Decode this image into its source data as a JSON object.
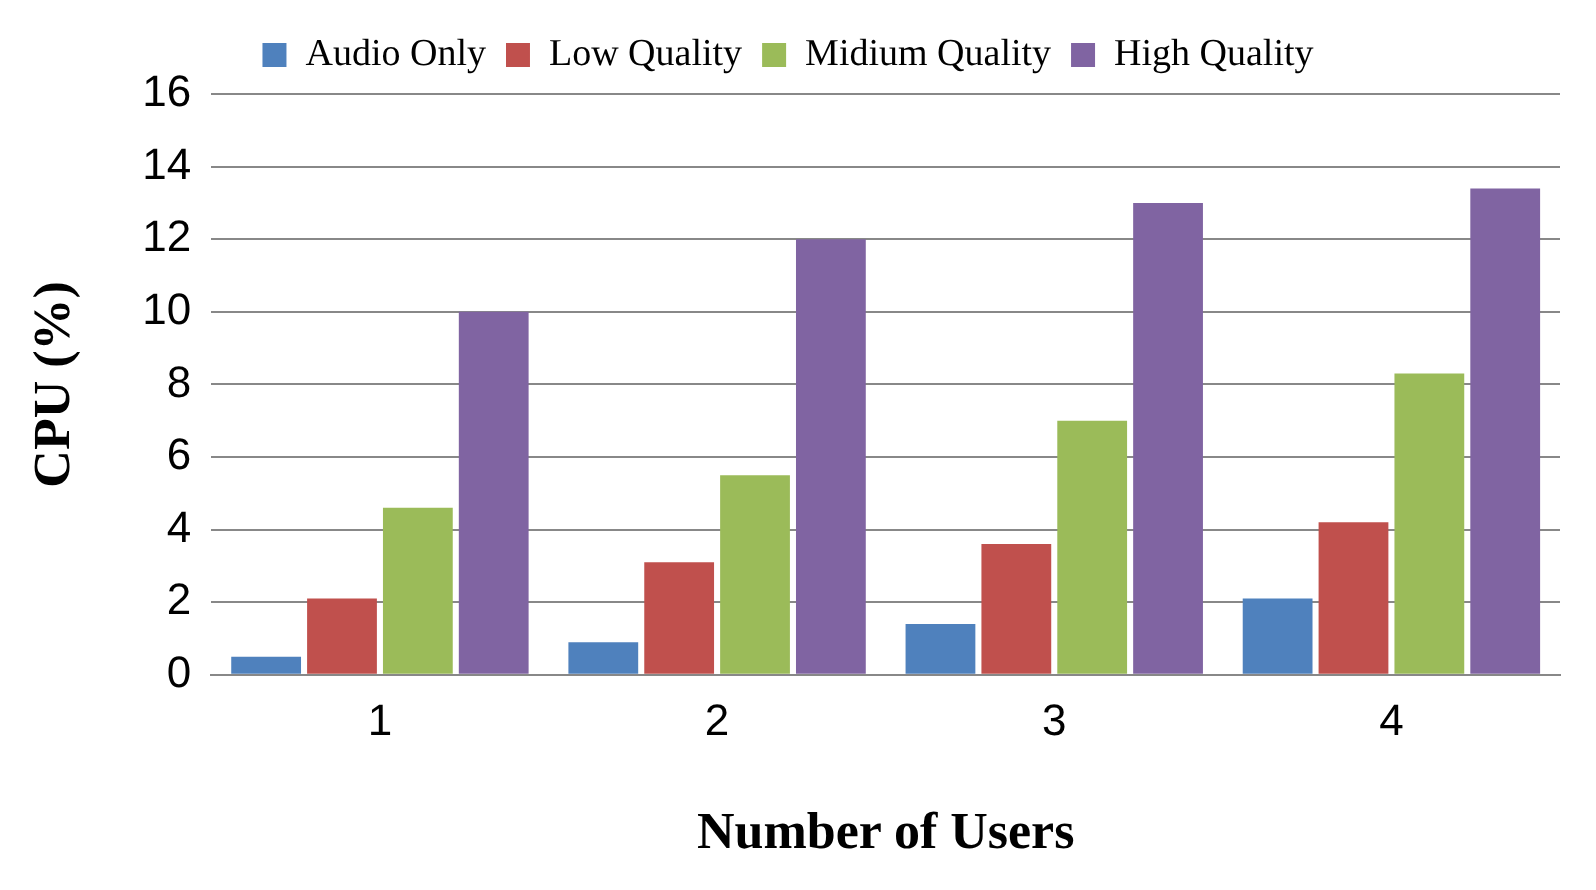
{
  "chart_data": {
    "type": "bar",
    "xlabel": "Number of Users",
    "ylabel": "CPU (%)",
    "categories": [
      "1",
      "2",
      "3",
      "4"
    ],
    "series": [
      {
        "name": "Audio Only",
        "color": "#4f81bd",
        "values": [
          0.5,
          0.9,
          1.4,
          2.1
        ]
      },
      {
        "name": "Low Quality",
        "color": "#c0504d",
        "values": [
          2.1,
          3.1,
          3.6,
          4.2
        ]
      },
      {
        "name": "Midium Quality",
        "color": "#9bbb59",
        "values": [
          4.6,
          5.5,
          7.0,
          8.3
        ]
      },
      {
        "name": "High Quality",
        "color": "#8064a2",
        "values": [
          10,
          12,
          13,
          13.4
        ]
      }
    ],
    "ylim": [
      0,
      16
    ],
    "yticks": [
      0,
      2,
      4,
      6,
      8,
      10,
      12,
      14,
      16
    ],
    "grid": "y",
    "legend": "top"
  }
}
